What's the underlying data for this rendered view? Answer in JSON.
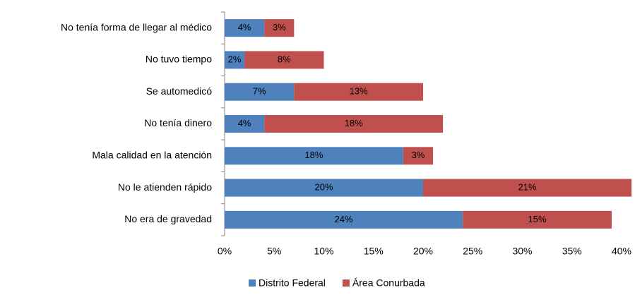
{
  "chart_data": {
    "type": "stacked-barh",
    "categories": [
      "No tenía forma de llegar al médico",
      "No tuvo tiempo",
      "Se automedicó",
      "No tenía dinero",
      "Mala calidad en la atención",
      "No le atienden rápido",
      "No era de gravedad"
    ],
    "series": [
      {
        "name": "Distrito Federal",
        "color": "#4f81bd",
        "values": [
          4,
          2,
          7,
          4,
          18,
          20,
          24
        ],
        "value_labels": [
          "4%",
          "2%",
          "7%",
          "4%",
          "18%",
          "20%",
          "24%"
        ]
      },
      {
        "name": "Área Conurbada",
        "color": "#c0504d",
        "values": [
          3,
          8,
          13,
          18,
          3,
          21,
          15
        ],
        "value_labels": [
          "3%",
          "8%",
          "13%",
          "18%",
          "3%",
          "21%",
          "15%"
        ]
      }
    ],
    "xlim": [
      0,
      40
    ],
    "xticks": [
      {
        "value": 0,
        "label": "0%"
      },
      {
        "value": 5,
        "label": "5%"
      },
      {
        "value": 10,
        "label": "10%"
      },
      {
        "value": 15,
        "label": "15%"
      },
      {
        "value": 20,
        "label": "20%"
      },
      {
        "value": 25,
        "label": "25%"
      },
      {
        "value": 30,
        "label": "30%"
      },
      {
        "value": 35,
        "label": "35%"
      },
      {
        "value": 40,
        "label": "40%"
      }
    ],
    "legend": "bottom"
  }
}
